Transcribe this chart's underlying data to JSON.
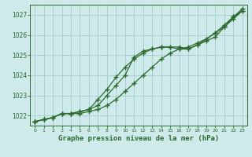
{
  "title": "Graphe pression niveau de la mer (hPa)",
  "background_color": "#ceeaea",
  "grid_color": "#aacfcf",
  "line_color": "#2d6a2d",
  "ylim": [
    1021.5,
    1027.5
  ],
  "xlim": [
    -0.5,
    23.5
  ],
  "yticks": [
    1022,
    1023,
    1024,
    1025,
    1026,
    1027
  ],
  "xticks": [
    0,
    1,
    2,
    3,
    4,
    5,
    6,
    7,
    8,
    9,
    10,
    11,
    12,
    13,
    14,
    15,
    16,
    17,
    18,
    19,
    20,
    21,
    22,
    23
  ],
  "series": [
    [
      1021.7,
      1021.8,
      1021.9,
      1022.1,
      1022.1,
      1022.2,
      1022.3,
      1022.8,
      1023.3,
      1023.9,
      1024.4,
      1024.8,
      1025.1,
      1025.3,
      1025.4,
      1025.4,
      1025.4,
      1025.3,
      1025.5,
      1025.7,
      1025.9,
      1026.4,
      1026.9,
      1027.3
    ],
    [
      1021.7,
      1021.8,
      1021.9,
      1022.1,
      1022.1,
      1022.2,
      1022.3,
      1022.5,
      1023.0,
      1023.5,
      1024.0,
      1024.9,
      1025.2,
      1025.3,
      1025.4,
      1025.4,
      1025.3,
      1025.3,
      1025.5,
      1025.8,
      1026.1,
      1026.5,
      1026.9,
      1027.2
    ],
    [
      1021.7,
      1021.8,
      1021.9,
      1022.1,
      1022.1,
      1022.1,
      1022.2,
      1022.3,
      1022.5,
      1022.8,
      1023.2,
      1023.6,
      1024.0,
      1024.4,
      1024.8,
      1025.1,
      1025.3,
      1025.4,
      1025.6,
      1025.8,
      1026.1,
      1026.4,
      1026.8,
      1027.2
    ]
  ]
}
